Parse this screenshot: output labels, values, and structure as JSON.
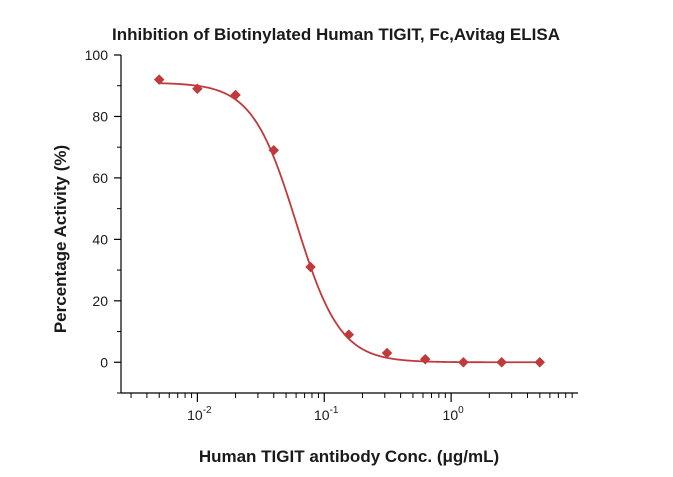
{
  "chart_data": {
    "type": "scatter",
    "title": "Inhibition of Biotinylated Human TIGIT, Fc,Avitag ELISA",
    "xlabel": "Human TIGIT antibody Conc. (μg/mL)",
    "ylabel": "Percentage Activity (%)",
    "x_scale": "log",
    "xlim": [
      0.0025,
      10
    ],
    "ylim": [
      -10,
      100
    ],
    "x_ticks": [
      {
        "value": 0.01,
        "base": "10",
        "exp": "-2"
      },
      {
        "value": 0.1,
        "base": "10",
        "exp": "-1"
      },
      {
        "value": 1,
        "base": "10",
        "exp": "0"
      }
    ],
    "y_ticks": [
      0,
      20,
      40,
      60,
      80,
      100
    ],
    "colors": {
      "series": "#c0393b",
      "axis": "#000000",
      "text": "#1a1a1a"
    },
    "series": [
      {
        "name": "Percentage Activity",
        "marker": "diamond",
        "x": [
          0.005,
          0.01,
          0.02,
          0.04,
          0.078,
          0.156,
          0.3125,
          0.625,
          1.25,
          2.5,
          5
        ],
        "y": [
          92,
          89,
          87,
          69,
          31,
          9,
          3,
          1,
          0,
          0,
          0
        ]
      }
    ],
    "fit": {
      "model": "4PL",
      "top": 91,
      "bottom": 0,
      "ic50": 0.06,
      "hill": 2.5
    }
  }
}
